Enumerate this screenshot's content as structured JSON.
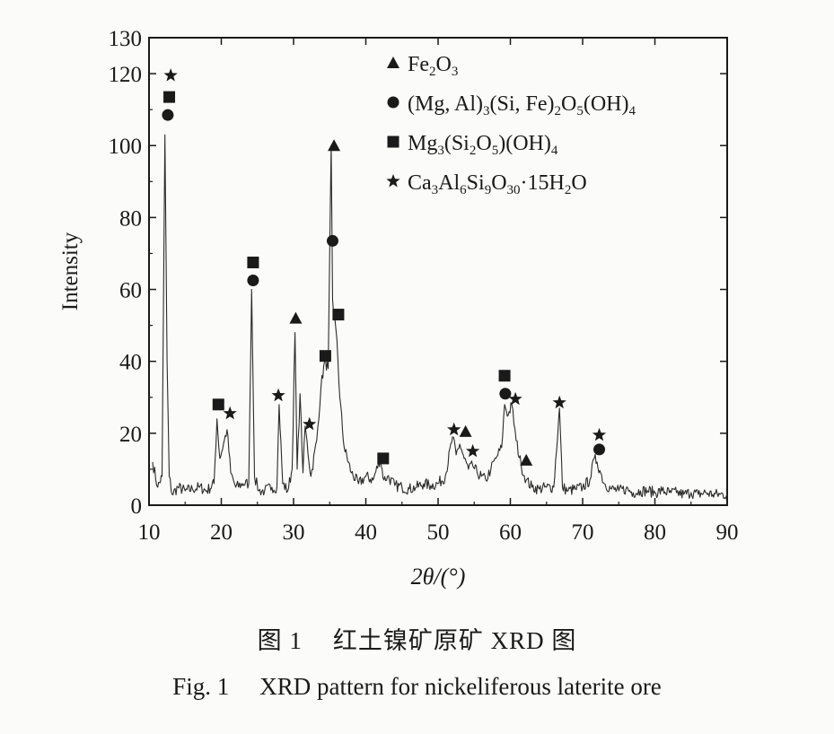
{
  "chart_data": {
    "type": "line",
    "xlabel": "2θ/(°)",
    "ylabel": "Intensity",
    "xlim": [
      10,
      90
    ],
    "ylim": [
      0,
      130
    ],
    "xticks": [
      10,
      20,
      30,
      40,
      50,
      60,
      70,
      80,
      90
    ],
    "yticks": [
      0,
      20,
      40,
      60,
      80,
      100,
      120,
      130
    ],
    "grid": false,
    "legend_position": "top-right",
    "colors": {
      "line": "#2b2b2b",
      "markers": "#1a1a1a",
      "axes": "#1a1a1a",
      "background": "#fbfbf9"
    },
    "legend": [
      {
        "symbol": "triangle",
        "label": "Fe2O3"
      },
      {
        "symbol": "circle",
        "label": "(Mg, Al)3(Si, Fe)2O5(OH)4"
      },
      {
        "symbol": "square",
        "label": "Mg3(Si2O5)(OH)4"
      },
      {
        "symbol": "star",
        "label": "Ca3Al6Si9O30·15H2O"
      }
    ],
    "series": [
      {
        "x": [
          10.5,
          11.2,
          11.8,
          12.2,
          12.5,
          12.8,
          13.2,
          14,
          15,
          16,
          17,
          18,
          19,
          19.4,
          19.8,
          20.3,
          20.8,
          21.3,
          22,
          23,
          23.8,
          24.2,
          24.6,
          25.2,
          26,
          27,
          27.7,
          28,
          28.5,
          29.2,
          29.8,
          30.2,
          30.5,
          30.9,
          31.3,
          31.6,
          32.4,
          33.2,
          33.8,
          34.3,
          34.8,
          35.2,
          35.4,
          35.6,
          36,
          36.4,
          37,
          38,
          39,
          40,
          41,
          42,
          42.5,
          43,
          44,
          45,
          46,
          47,
          48,
          49,
          50,
          51,
          52,
          52.5,
          53,
          53.6,
          54.2,
          54.8,
          55.4,
          56,
          56.6,
          57.3,
          58,
          58.8,
          59.2,
          59.7,
          60.2,
          60.8,
          61.5,
          62.2,
          63,
          64,
          65,
          66,
          66.8,
          67.2,
          68,
          69,
          70,
          71,
          71.6,
          72,
          72.5,
          73,
          74,
          75,
          76,
          77,
          78,
          79,
          80,
          81,
          82,
          83,
          84,
          85,
          86,
          87,
          88,
          89,
          90
        ],
        "values": [
          12,
          5,
          8,
          103,
          40,
          8,
          3,
          5,
          4,
          4.5,
          5,
          4,
          6,
          24,
          13,
          17,
          21,
          9,
          5,
          6,
          6,
          60,
          8,
          4,
          4,
          5,
          5,
          28,
          6,
          4,
          10,
          48,
          10,
          31,
          9,
          22,
          8,
          18,
          33,
          40,
          38,
          100,
          57,
          52,
          46,
          30,
          16,
          9,
          6,
          8,
          7,
          13,
          7,
          8,
          5.5,
          5,
          4.5,
          5,
          6,
          5.5,
          6,
          8,
          19,
          14,
          17,
          13,
          10,
          11,
          9,
          8,
          7,
          10,
          13,
          16,
          28,
          25,
          28,
          18,
          11,
          7,
          5,
          4.5,
          5,
          5,
          27,
          5,
          4,
          4.5,
          5,
          7,
          13,
          12,
          9,
          6,
          4.5,
          4,
          4.5,
          3.5,
          4,
          4,
          3.5,
          4,
          3.5,
          3.5,
          3,
          3.5,
          3,
          3.5,
          3,
          3,
          3
        ]
      }
    ],
    "peak_markers": [
      {
        "symbol": "star",
        "x": 13.0,
        "y": 119.5
      },
      {
        "symbol": "square",
        "x": 12.8,
        "y": 113.5
      },
      {
        "symbol": "circle",
        "x": 12.6,
        "y": 108.5
      },
      {
        "symbol": "square",
        "x": 19.6,
        "y": 28.0
      },
      {
        "symbol": "star",
        "x": 21.2,
        "y": 25.5
      },
      {
        "symbol": "square",
        "x": 24.4,
        "y": 67.5
      },
      {
        "symbol": "circle",
        "x": 24.4,
        "y": 62.5
      },
      {
        "symbol": "star",
        "x": 27.9,
        "y": 30.5
      },
      {
        "symbol": "triangle",
        "x": 30.3,
        "y": 52.0
      },
      {
        "symbol": "star",
        "x": 32.2,
        "y": 22.5
      },
      {
        "symbol": "square",
        "x": 34.4,
        "y": 41.5
      },
      {
        "symbol": "triangle",
        "x": 35.6,
        "y": 100.0
      },
      {
        "symbol": "circle",
        "x": 35.4,
        "y": 73.5
      },
      {
        "symbol": "square",
        "x": 36.2,
        "y": 53.0
      },
      {
        "symbol": "square",
        "x": 42.4,
        "y": 13.0
      },
      {
        "symbol": "star",
        "x": 52.2,
        "y": 21.0
      },
      {
        "symbol": "triangle",
        "x": 53.8,
        "y": 20.5
      },
      {
        "symbol": "star",
        "x": 54.8,
        "y": 15.0
      },
      {
        "symbol": "square",
        "x": 59.2,
        "y": 36.0
      },
      {
        "symbol": "circle",
        "x": 59.3,
        "y": 31.0
      },
      {
        "symbol": "star",
        "x": 60.7,
        "y": 29.5
      },
      {
        "symbol": "triangle",
        "x": 62.2,
        "y": 12.5
      },
      {
        "symbol": "star",
        "x": 66.8,
        "y": 28.5
      },
      {
        "symbol": "star",
        "x": 72.3,
        "y": 19.5
      },
      {
        "symbol": "circle",
        "x": 72.3,
        "y": 15.5
      }
    ]
  },
  "caption": {
    "cn_label": "图 1",
    "cn_title": "红土镍矿原矿 XRD 图",
    "en_label": "Fig. 1",
    "en_title": "XRD pattern for nickeliferous laterite ore"
  }
}
